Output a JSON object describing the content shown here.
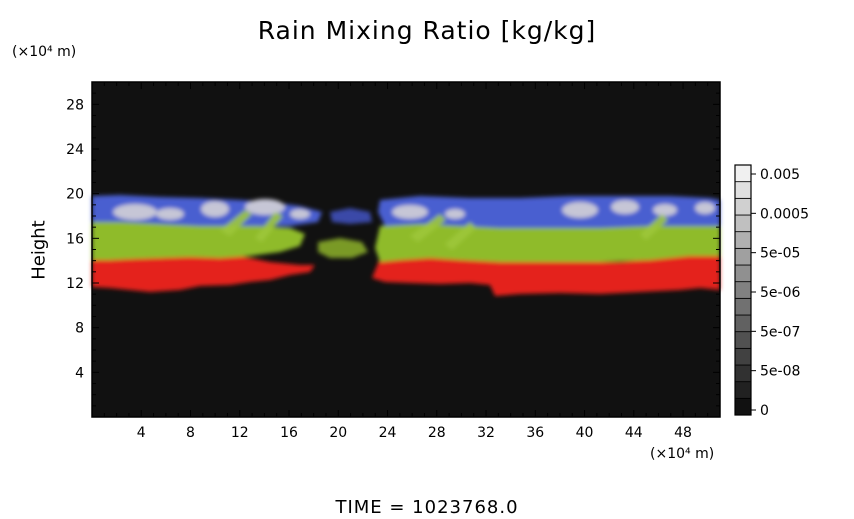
{
  "chart_data": {
    "type": "heatmap",
    "title": "Rain Mixing Ratio [kg/kg]",
    "ylabel": "Height",
    "xunit": "(×10⁴ m)",
    "yunit": "(×10⁴ m)",
    "xlim": [
      0,
      51
    ],
    "ylim": [
      0,
      30
    ],
    "xticks": [
      4,
      8,
      12,
      16,
      20,
      24,
      28,
      32,
      36,
      40,
      44,
      48
    ],
    "yticks": [
      4,
      8,
      12,
      16,
      20,
      24,
      28
    ],
    "colorbar": {
      "labels": [
        "0.005",
        "0.0005",
        "5e-05",
        "5e-06",
        "5e-07",
        "5e-08",
        "0"
      ],
      "levels": 15
    },
    "footer": "TIME = 1023768.0",
    "colors": {
      "background": "#111111",
      "band_low": "#e4201e",
      "band_mid": "#8fbb2a",
      "band_high": "#4a5fd0",
      "band_top": "#c6c6d6"
    }
  }
}
